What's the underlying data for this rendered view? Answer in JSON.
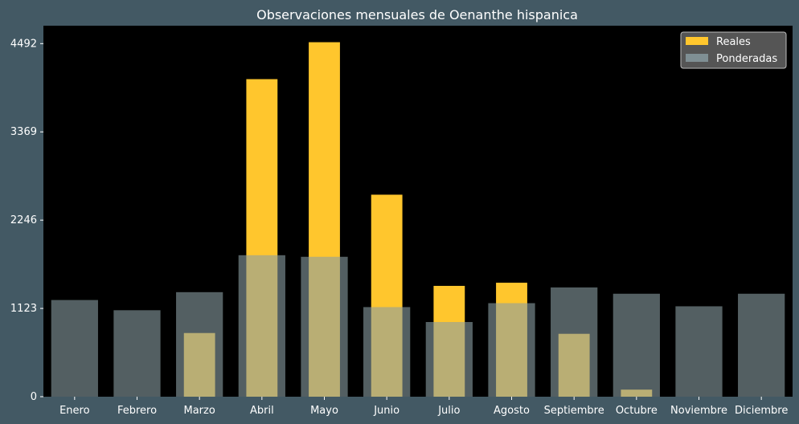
{
  "chart_data": {
    "type": "bar",
    "title": "Observaciones mensuales de Oenanthe hispanica",
    "categories": [
      "Enero",
      "Febrero",
      "Marzo",
      "Abril",
      "Mayo",
      "Junio",
      "Julio",
      "Agosto",
      "Septiembre",
      "Octubre",
      "Noviembre",
      "Diciembre"
    ],
    "series": [
      {
        "name": "Reales",
        "color": "#ffc62d",
        "values": [
          0,
          0,
          810,
          4040,
          4510,
          2570,
          1410,
          1450,
          800,
          90,
          0,
          0
        ]
      },
      {
        "name": "Ponderadas",
        "color": "#8a9ea4",
        "values": [
          1230,
          1100,
          1330,
          1800,
          1780,
          1140,
          950,
          1190,
          1390,
          1310,
          1150,
          1310
        ]
      }
    ],
    "yticks": [
      0,
      1123,
      2246,
      3369,
      4492
    ],
    "ylim": [
      0,
      4720
    ],
    "xlabel": "",
    "ylabel": "",
    "legend_position": "top-right",
    "grid": false,
    "plot_background": "#000000",
    "figure_background": "#435964"
  }
}
